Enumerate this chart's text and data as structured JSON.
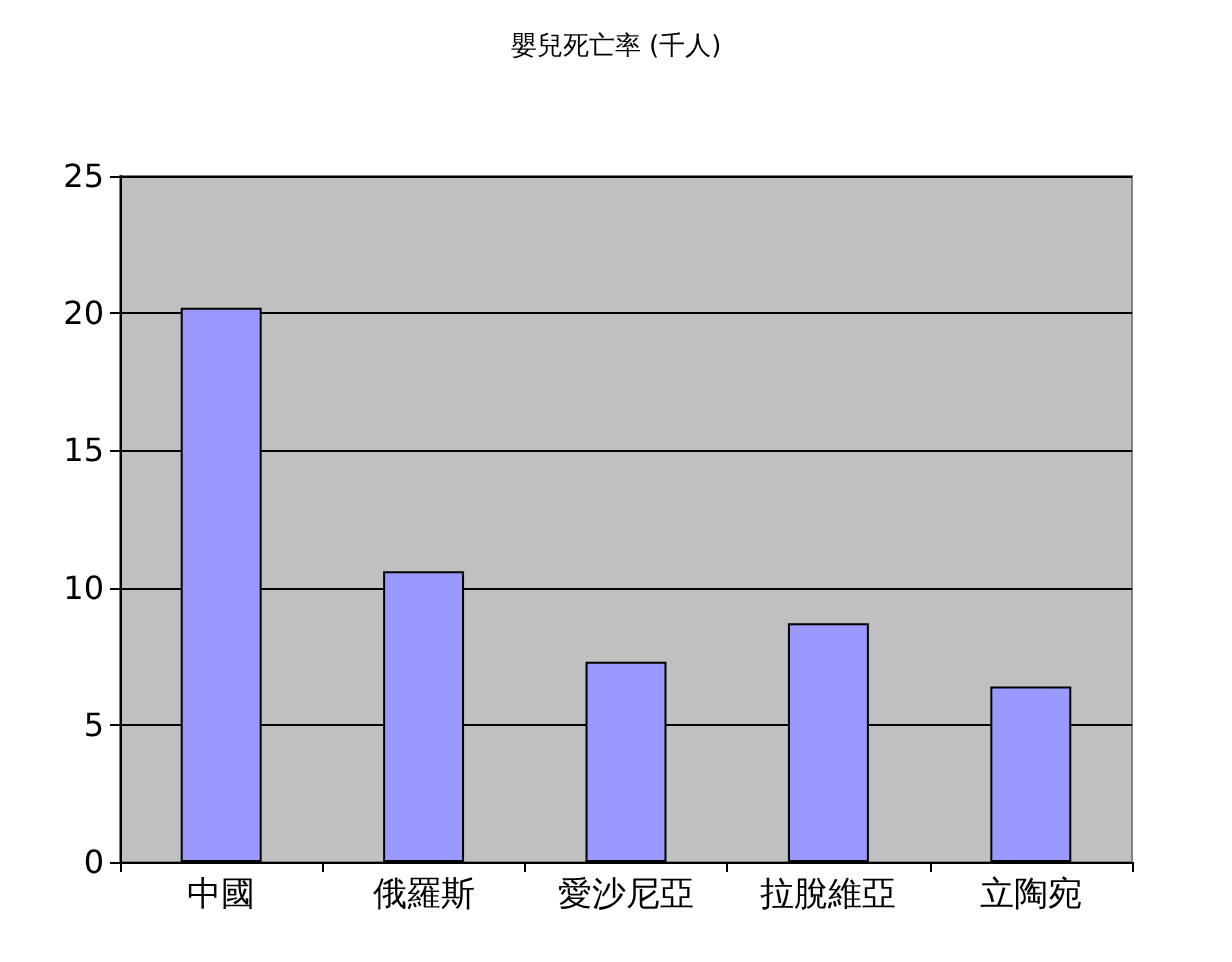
{
  "chart_data": {
    "type": "bar",
    "title": "嬰兒死亡率 (千人)",
    "categories": [
      "中國",
      "俄羅斯",
      "愛沙尼亞",
      "拉脫維亞",
      "立陶宛"
    ],
    "values": [
      20.2,
      10.6,
      7.3,
      8.7,
      6.4
    ],
    "color": "#9999ff",
    "ylim": [
      0,
      25
    ],
    "yticks": [
      0,
      5,
      10,
      15,
      20,
      25
    ],
    "grid": "y"
  }
}
